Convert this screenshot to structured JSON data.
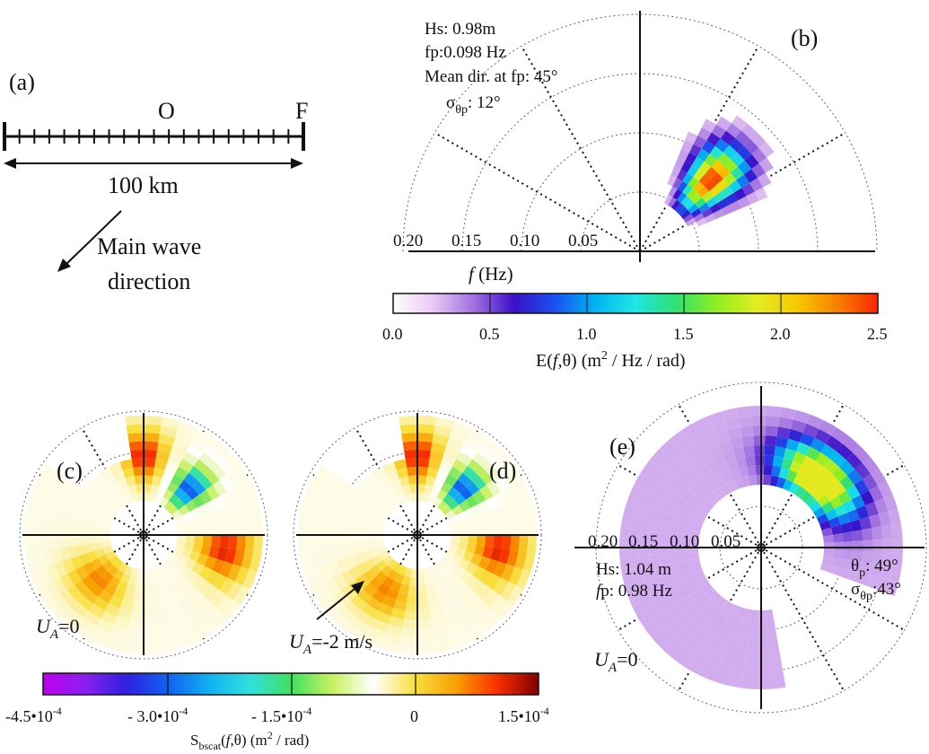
{
  "panel_a": {
    "label": "(a)",
    "point_o": "O",
    "point_f": "F",
    "distance_label": "100 km",
    "direction_line1": "Main wave",
    "direction_line2": "direction"
  },
  "panel_b": {
    "label": "(b)",
    "info": {
      "hs": "Hs: 0.98m",
      "fp": "fp:0.098 Hz",
      "mean_dir": "Mean dir. at fp:  45°",
      "sigma_symbol": "σ",
      "sigma_sub": "θp",
      "sigma_value": ": 12°"
    },
    "radial_ticks": [
      "0.20",
      "0.15",
      "0.10",
      "0.05"
    ],
    "axis_label_var": "f",
    "axis_label_unit": " (Hz)"
  },
  "colorbar_top": {
    "ticks": [
      "0.0",
      "0.5",
      "1.0",
      "1.5",
      "2.0",
      "2.5"
    ],
    "label_main": "E(",
    "label_f": "f",
    "label_rest": ",θ)  (m",
    "label_sup": "2",
    "label_end": " / Hz / rad)",
    "stops": [
      "#ffffff",
      "#e8c8f4",
      "#a070e0",
      "#3a10c8",
      "#1a50f0",
      "#00b4f0",
      "#20e6e6",
      "#30e070",
      "#90ee20",
      "#e0ee20",
      "#f8c800",
      "#f88000",
      "#f82800"
    ]
  },
  "panel_c": {
    "label": "(c)",
    "ua_sym": "U",
    "ua_sub": "A",
    "ua_val": "=0"
  },
  "panel_d": {
    "label": "(d)",
    "ua_sym": "U",
    "ua_sub": "A",
    "ua_val": "=-2 m/s"
  },
  "panel_e": {
    "label": "(e)",
    "radial_ticks": [
      "0.20",
      "0.15",
      "0.10",
      "0.05"
    ],
    "hs": "Hs: 1.04 m",
    "fp_var": "f",
    "fp_rest": "p: 0.98 Hz",
    "theta_symbol": "θ",
    "theta_sub": "p",
    "theta_value": ": 49°",
    "sigma_symbol": "σ",
    "sigma_sub": "θp",
    "sigma_value": ":43°",
    "ua_sym": "U",
    "ua_sub": "A",
    "ua_val": "=0"
  },
  "colorbar_bottom": {
    "ticks": [
      "-4.5•10",
      "- 3.0•10",
      "- 1.5•10",
      "0",
      "1.5•10"
    ],
    "tick_exp": [
      "-4",
      "-4",
      "-4",
      "",
      "-4"
    ],
    "label_s": "S",
    "label_sub": "bscat",
    "label_open": "(",
    "label_f": "f",
    "label_rest": ",θ)  (m",
    "label_sup": "2",
    "label_end": " / rad)",
    "stops": [
      "#c000f0",
      "#8a20f0",
      "#3020e0",
      "#1060f0",
      "#10b0f0",
      "#30e0e0",
      "#40e060",
      "#c8f060",
      "#ffffff",
      "#f8e040",
      "#f8a000",
      "#f83000",
      "#800000"
    ]
  },
  "colors": {
    "ink": "#111111",
    "grid": "#666666"
  }
}
